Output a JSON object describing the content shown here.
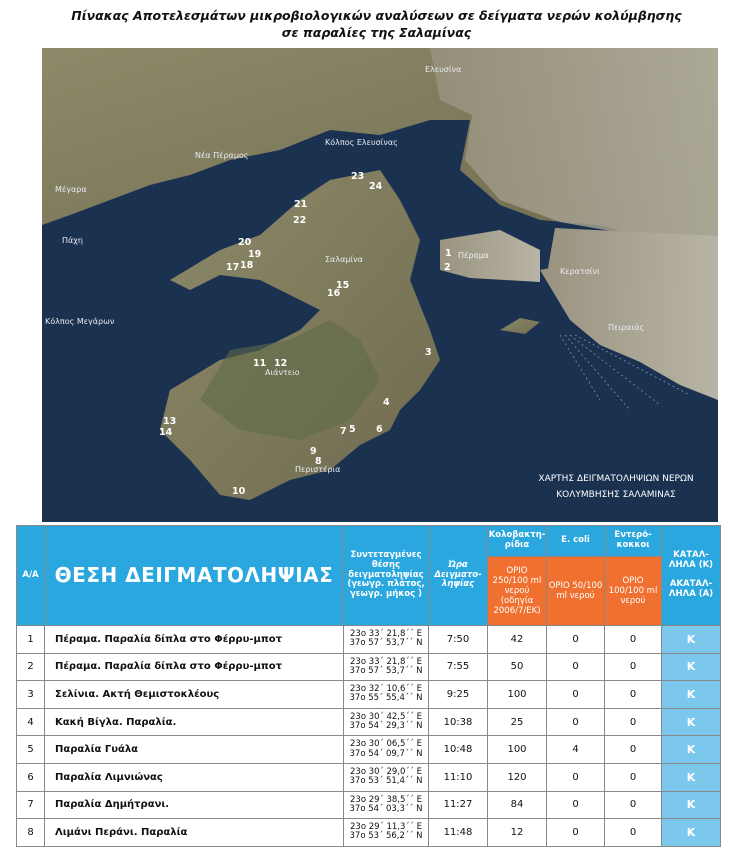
{
  "header": {
    "title": [
      "Πίνακας Αποτελεσμάτων μικροβιολογικών αναλύσεων σε δείγματα νερών κολύμβησης",
      "σε παραλίες της Σαλαμίνας"
    ]
  },
  "map": {
    "places": [
      "Μέγαρα",
      "Νέα Πέραμος",
      "Κόλπος Ελευσίνας",
      "Ελευσίνα",
      "Πάχη",
      "Κόλπος Μεγάρων",
      "Σαλαμίνα",
      "Αιάντειο",
      "Κερατσίνι",
      "Πειραιάς",
      "Πέραμα",
      "Περιστέρια"
    ],
    "points": [
      "1",
      "2",
      "3",
      "4",
      "5",
      "6",
      "7",
      "8",
      "9",
      "10",
      "11",
      "12",
      "13",
      "14",
      "15",
      "16",
      "17",
      "18",
      "19",
      "20",
      "21",
      "22",
      "23",
      "24"
    ],
    "caption": [
      "ΧΑΡΤΗΣ ΔΕΙΓΜΑΤΟΛΗΨΙΩΝ ΝΕΡΩΝ",
      "ΚΟΛΥΜΒΗΣΗΣ ΣΑΛΑΜΙΝΑΣ"
    ]
  },
  "table": {
    "header": {
      "index": "Α/Α",
      "location": "ΘΕΣΗ ΔΕΙΓΜΑΤΟΛΗΨΙΑΣ",
      "coords": "Συντεταγμένες θέσης δειγματοληψίας (γεωγρ. πλάτος, γεωγρ. μήκος )",
      "time": "Ώρα Δειγματο-ληψίας",
      "coliform": "Κολοβακτη-ρίδια",
      "ecoli": "E. coli",
      "enterococci": "Εντερό-κοκκοι",
      "suitability": [
        "ΚΑΤΑΛ-ΛΗΛΑ (Κ)",
        "ΑΚΑΤΑΛ-ΛΗΛΑ (Α)"
      ]
    },
    "limits": [
      "ΟΡΙΟ 250/100 ml νερού (οδηγία 2006/7/ΕΚ)",
      "ΟΡΙΟ 50/100 ml νερού",
      "ΟΡΙΟ 100/100 ml νερού"
    ],
    "rows": [
      [
        "1",
        "Πέραμα. Παραλία δίπλα στο Φέρρυ-μποτ",
        [
          "23ο 33΄ 21,8΄΄ Ε",
          "37ο 57΄ 53,7΄΄ Ν"
        ],
        "7:50",
        42,
        0,
        0,
        "Κ"
      ],
      [
        "2",
        "Πέραμα. Παραλία δίπλα στο Φέρρυ-μποτ",
        [
          "23ο 33΄ 21,8΄΄ Ε",
          "37ο 57΄ 53,7΄΄ Ν"
        ],
        "7:55",
        50,
        0,
        0,
        "Κ"
      ],
      [
        "3",
        "Σελίνια. Ακτή Θεμιστοκλέους",
        [
          "23ο 32΄ 10,6΄΄ Ε",
          "37ο 55΄ 55,4΄΄ Ν"
        ],
        "9:25",
        100,
        0,
        0,
        "Κ"
      ],
      [
        "4",
        "Κακή Βίγλα. Παραλία.",
        [
          "23ο 30΄ 42,5΄΄ Ε",
          "37ο 54΄ 29,3΄΄ Ν"
        ],
        "10:38",
        25,
        0,
        0,
        "Κ"
      ],
      [
        "5",
        "Παραλία Γυάλα",
        [
          "23ο 30΄ 06,5΄΄ Ε",
          "37ο 54΄ 09,7΄΄ Ν"
        ],
        "10:48",
        100,
        4,
        0,
        "Κ"
      ],
      [
        "6",
        "Παραλία Λιμνιώνας",
        [
          "23ο 30΄ 29,0΄΄ Ε",
          "37ο 53΄ 51,4΄΄ Ν"
        ],
        "11:10",
        120,
        0,
        0,
        "Κ"
      ],
      [
        "7",
        "Παραλία Δημήτρανι.",
        [
          "23ο 29΄ 38,5΄΄ Ε",
          "37ο 54΄ 03,3΄΄ Ν"
        ],
        "11:27",
        84,
        0,
        0,
        "Κ"
      ],
      [
        "8",
        "Λιμάνι Περάνι. Παραλία",
        [
          "23ο 29΄ 11,3΄΄ Ε",
          "37ο 53΄ 56,2΄΄ Ν"
        ],
        "11:48",
        12,
        0,
        0,
        "Κ"
      ]
    ]
  }
}
